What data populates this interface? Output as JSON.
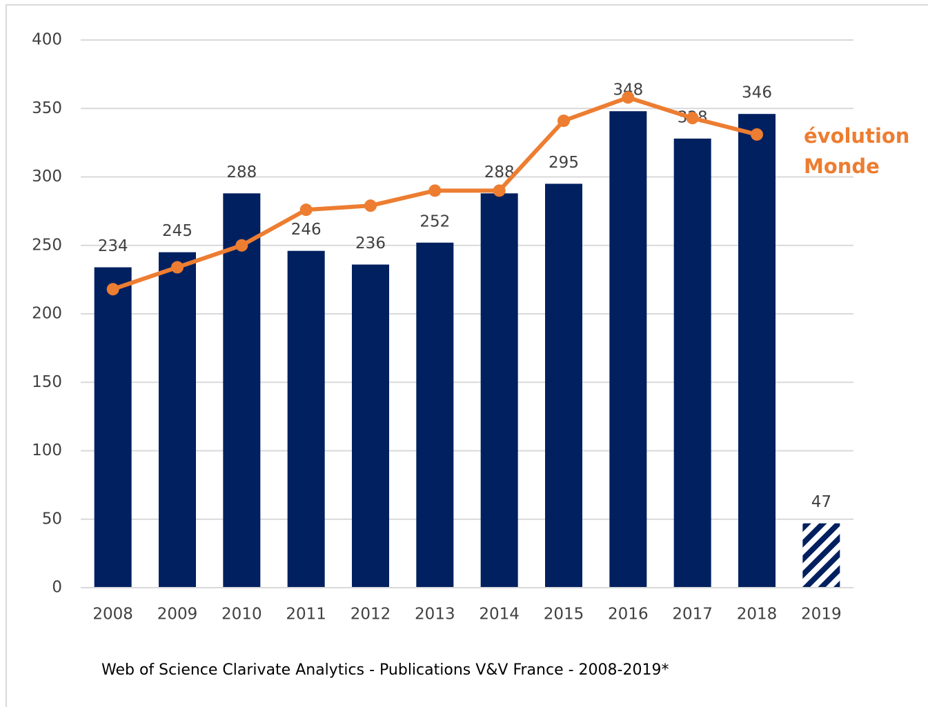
{
  "chart_data": {
    "type": "bar",
    "caption": "Web of Science Clarivate Analytics - Publications V&V France - 2008-2019*",
    "categories": [
      "2008",
      "2009",
      "2010",
      "2011",
      "2012",
      "2013",
      "2014",
      "2015",
      "2016",
      "2017",
      "2018",
      "2019"
    ],
    "series": [
      {
        "type": "bar",
        "color": "#002060",
        "values": [
          234,
          245,
          288,
          246,
          236,
          252,
          288,
          295,
          348,
          328,
          346,
          47
        ],
        "patterns": [
          "solid",
          "solid",
          "solid",
          "solid",
          "solid",
          "solid",
          "solid",
          "solid",
          "solid",
          "solid",
          "solid",
          "hatch"
        ],
        "data_labels": true
      },
      {
        "type": "line",
        "name": "évolution Monde",
        "color": "#ed7d31",
        "values": [
          218,
          234,
          250,
          276,
          279,
          290,
          290,
          341,
          358,
          343,
          331,
          null
        ]
      }
    ],
    "ylim": [
      0,
      400
    ],
    "yticks": [
      0,
      50,
      100,
      150,
      200,
      250,
      300,
      350,
      400
    ],
    "grid": true
  }
}
